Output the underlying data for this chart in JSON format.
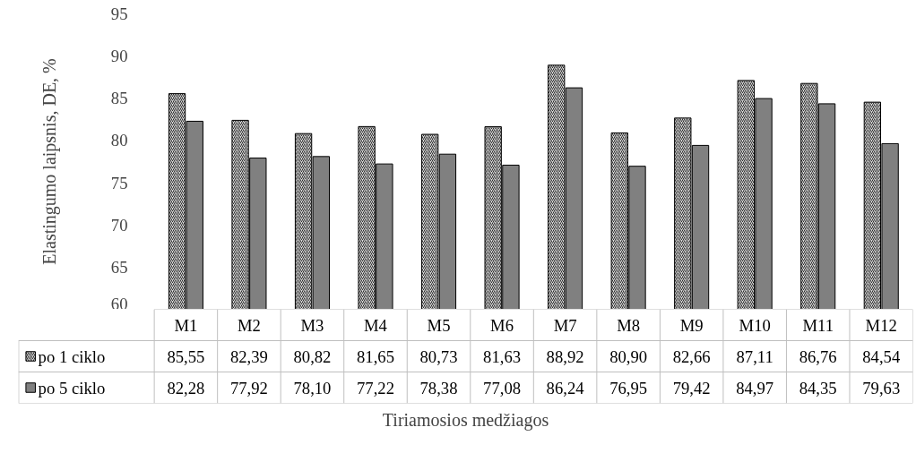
{
  "chart_data": {
    "type": "bar",
    "ylabel": "Elastingumo laipsnis, DE, %",
    "xlabel": "Tiriamosios medžiagos",
    "categories": [
      "M1",
      "M2",
      "M3",
      "M4",
      "M5",
      "M6",
      "M7",
      "M8",
      "M9",
      "M10",
      "M11",
      "M12"
    ],
    "ylim": [
      60,
      95
    ],
    "yticks": [
      60,
      65,
      70,
      75,
      80,
      85,
      90,
      95
    ],
    "grid": false,
    "legend": "bottom",
    "data_labels": true,
    "series": [
      {
        "name": "po 1 ciklo",
        "color": "#d9d9d9",
        "values": [
          85.55,
          82.39,
          80.82,
          81.65,
          80.73,
          81.63,
          88.92,
          80.9,
          82.66,
          87.11,
          86.76,
          84.54
        ],
        "value_labels": [
          "85,55",
          "82,39",
          "80,82",
          "81,65",
          "80,73",
          "81,63",
          "88,92",
          "80,90",
          "82,66",
          "87,11",
          "86,76",
          "84,54"
        ]
      },
      {
        "name": "po 5 ciklo",
        "color": "#808080",
        "values": [
          82.28,
          77.92,
          78.1,
          77.22,
          78.38,
          77.08,
          86.24,
          76.95,
          79.42,
          84.97,
          84.35,
          79.63
        ],
        "value_labels": [
          "82,28",
          "77,92",
          "78,10",
          "77,22",
          "78,38",
          "77,08",
          "86,24",
          "76,95",
          "79,42",
          "84,97",
          "84,35",
          "79,63"
        ]
      }
    ]
  }
}
